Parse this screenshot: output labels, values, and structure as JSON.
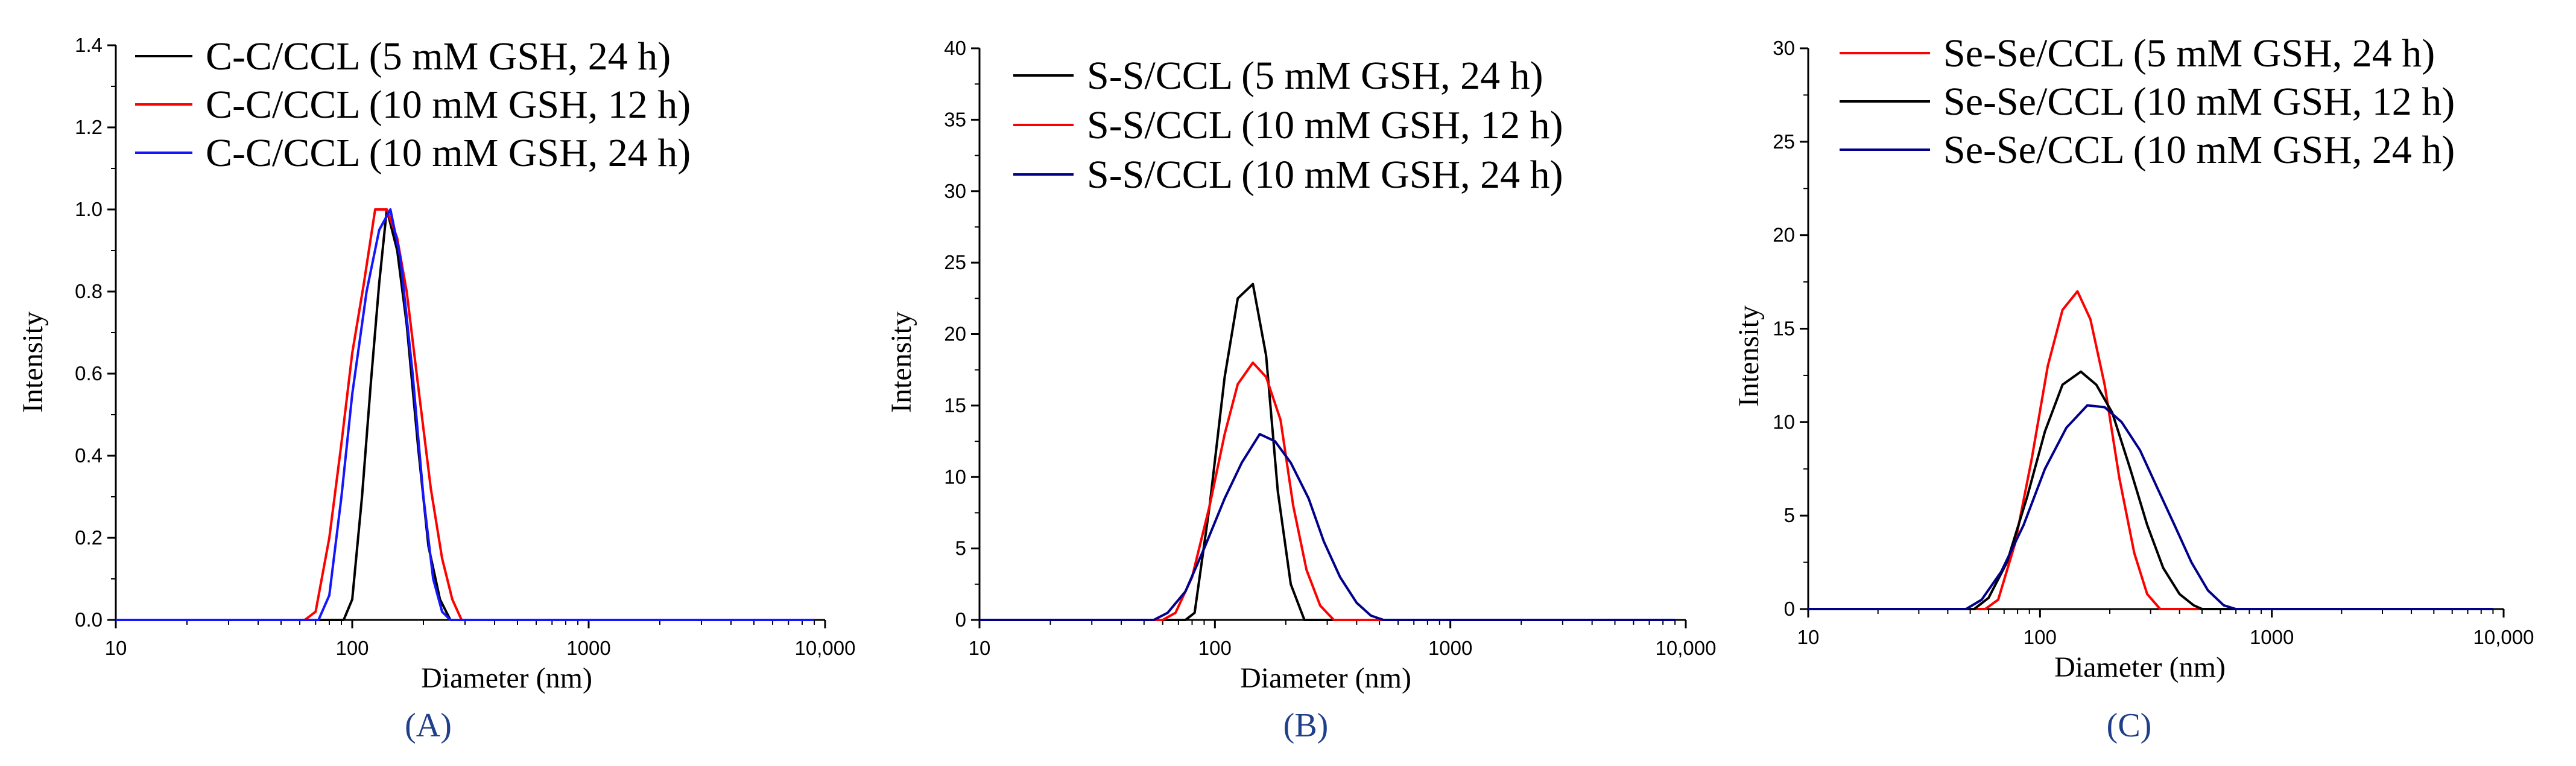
{
  "colors": {
    "black": "#000000",
    "red": "#ff0000",
    "blue": "#1515ff",
    "navy": "#00008b",
    "label": "#1f3f8a"
  },
  "chart_data": [
    {
      "type": "line",
      "panel_label": "(A)",
      "xlabel": "Diameter (nm)",
      "ylabel": "Intensity",
      "xscale": "log",
      "xlim": [
        10,
        10000
      ],
      "ylim": [
        0,
        1.4
      ],
      "xticks": [
        "10",
        "100",
        "1000",
        "10,000"
      ],
      "yticks": [
        "0.0",
        "0.2",
        "0.4",
        "0.6",
        "0.8",
        "1.0",
        "1.2",
        "1.4"
      ],
      "legend_position": "top",
      "series": [
        {
          "name": "C-C/CCL (5 mM GSH, 24 h)",
          "color": "#000000",
          "x": [
            10,
            92,
            100,
            110,
            120,
            130,
            140,
            155,
            170,
            190,
            210,
            235,
            260,
            9000
          ],
          "y": [
            0,
            0,
            0.05,
            0.3,
            0.58,
            0.82,
            1.0,
            0.9,
            0.72,
            0.42,
            0.18,
            0.05,
            0,
            0
          ]
        },
        {
          "name": "C-C/CCL (10 mM GSH, 12 h)",
          "color": "#ff0000",
          "x": [
            10,
            63,
            70,
            80,
            90,
            100,
            112,
            125,
            140,
            155,
            170,
            190,
            215,
            240,
            265,
            290,
            9000
          ],
          "y": [
            0,
            0,
            0.02,
            0.2,
            0.43,
            0.65,
            0.82,
            1.0,
            1.0,
            0.93,
            0.8,
            0.57,
            0.32,
            0.15,
            0.05,
            0,
            0
          ]
        },
        {
          "name": "C-C/CCL (10 mM GSH, 24 h)",
          "color": "#1515ff",
          "x": [
            10,
            72,
            80,
            90,
            100,
            115,
            130,
            145,
            160,
            180,
            200,
            220,
            240,
            260,
            9000
          ],
          "y": [
            0,
            0,
            0.06,
            0.3,
            0.55,
            0.8,
            0.95,
            1.0,
            0.88,
            0.6,
            0.3,
            0.1,
            0.02,
            0,
            0
          ]
        }
      ]
    },
    {
      "type": "line",
      "panel_label": "(B)",
      "xlabel": "Diameter (nm)",
      "ylabel": "Intensity",
      "xscale": "log",
      "xlim": [
        10,
        10000
      ],
      "ylim": [
        0,
        40
      ],
      "xticks": [
        "10",
        "100",
        "1000",
        "10,000"
      ],
      "yticks": [
        "0",
        "5",
        "10",
        "15",
        "20",
        "25",
        "30",
        "35",
        "40"
      ],
      "legend_position": "top",
      "series": [
        {
          "name": "S-S/CCL (5 mM GSH, 24 h)",
          "color": "#000000",
          "x": [
            10,
            75,
            82,
            95,
            110,
            125,
            145,
            165,
            185,
            210,
            240,
            9000
          ],
          "y": [
            0,
            0,
            0.5,
            8,
            17,
            22.5,
            23.5,
            18.5,
            9,
            2.5,
            0,
            0
          ]
        },
        {
          "name": "S-S/CCL (10 mM GSH, 12 h)",
          "color": "#ff0000",
          "x": [
            10,
            60,
            68,
            80,
            95,
            110,
            125,
            145,
            165,
            190,
            215,
            245,
            280,
            320,
            9000
          ],
          "y": [
            0,
            0,
            0.5,
            3,
            8,
            13,
            16.5,
            18,
            17,
            14,
            8,
            3.5,
            1,
            0,
            0
          ]
        },
        {
          "name": "S-S/CCL (10 mM GSH, 24 h)",
          "color": "#00008b",
          "x": [
            10,
            55,
            63,
            75,
            90,
            110,
            130,
            155,
            180,
            210,
            250,
            290,
            340,
            400,
            460,
            520,
            9000
          ],
          "y": [
            0,
            0,
            0.5,
            2,
            5,
            8.5,
            11,
            13,
            12.5,
            11,
            8.5,
            5.5,
            3,
            1.2,
            0.3,
            0,
            0
          ]
        }
      ]
    },
    {
      "type": "line",
      "panel_label": "(C)",
      "xlabel": "Diameter (nm)",
      "ylabel": "Intensity",
      "xscale": "log",
      "xlim": [
        10,
        10000
      ],
      "ylim": [
        0,
        30
      ],
      "xticks": [
        "10",
        "100",
        "1000",
        "10,000"
      ],
      "yticks": [
        "0",
        "5",
        "10",
        "15",
        "20",
        "25",
        "30"
      ],
      "legend_position": "top",
      "series": [
        {
          "name": "Se-Se/CCL (5 mM GSH, 24 h)",
          "color": "#ff0000",
          "x": [
            10,
            58,
            66,
            78,
            92,
            108,
            125,
            145,
            165,
            190,
            220,
            255,
            290,
            330,
            9000
          ],
          "y": [
            0,
            0,
            0.5,
            3.5,
            8,
            13,
            16,
            17,
            15.5,
            12,
            7,
            3,
            0.8,
            0,
            0
          ]
        },
        {
          "name": "Se-Se/CCL (10 mM GSH, 12 h)",
          "color": "#000000",
          "x": [
            10,
            52,
            60,
            72,
            88,
            105,
            125,
            150,
            175,
            205,
            245,
            290,
            340,
            400,
            460,
            500,
            9000
          ],
          "y": [
            0,
            0,
            0.6,
            2.5,
            6,
            9.5,
            12,
            12.7,
            12,
            10.5,
            7.5,
            4.5,
            2.2,
            0.8,
            0.2,
            0,
            0
          ]
        },
        {
          "name": "Se-Se/CCL (10 mM GSH, 24 h)",
          "color": "#00008b",
          "x": [
            10,
            48,
            56,
            68,
            85,
            105,
            130,
            160,
            190,
            225,
            270,
            320,
            380,
            450,
            530,
            620,
            700,
            9000
          ],
          "y": [
            0,
            0,
            0.5,
            2,
            4.5,
            7.5,
            9.7,
            10.9,
            10.8,
            10,
            8.5,
            6.5,
            4.5,
            2.5,
            1,
            0.2,
            0,
            0
          ]
        }
      ]
    }
  ]
}
